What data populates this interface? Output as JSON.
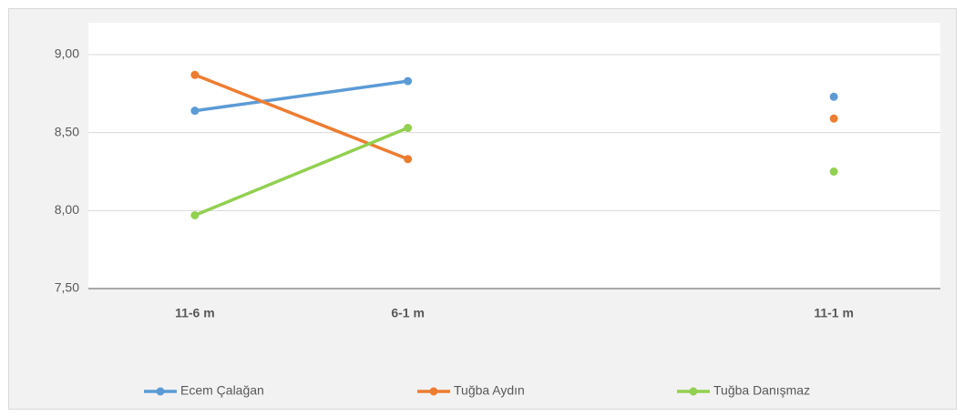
{
  "chart_data": {
    "type": "line",
    "categories": [
      "11-6 m",
      "6-1 m",
      null,
      "11-1 m"
    ],
    "series": [
      {
        "name": "Ecem Çalağan",
        "color": "#5b9bd5",
        "values": [
          8.64,
          8.83,
          null,
          8.73
        ]
      },
      {
        "name": "Tuğba Aydın",
        "color": "#ed7d31",
        "values": [
          8.87,
          8.33,
          null,
          8.59
        ]
      },
      {
        "name": "Tuğba Danışmaz",
        "color": "#92d050",
        "values": [
          7.97,
          8.53,
          null,
          8.25
        ]
      }
    ],
    "ylim": [
      7.5,
      9.0
    ],
    "yticks": [
      {
        "value": 7.5,
        "label": "7,50"
      },
      {
        "value": 8.0,
        "label": "8,00"
      },
      {
        "value": 8.5,
        "label": "8,50"
      },
      {
        "value": 9.0,
        "label": "9,00"
      }
    ],
    "grid": true,
    "legend": "bottom"
  }
}
